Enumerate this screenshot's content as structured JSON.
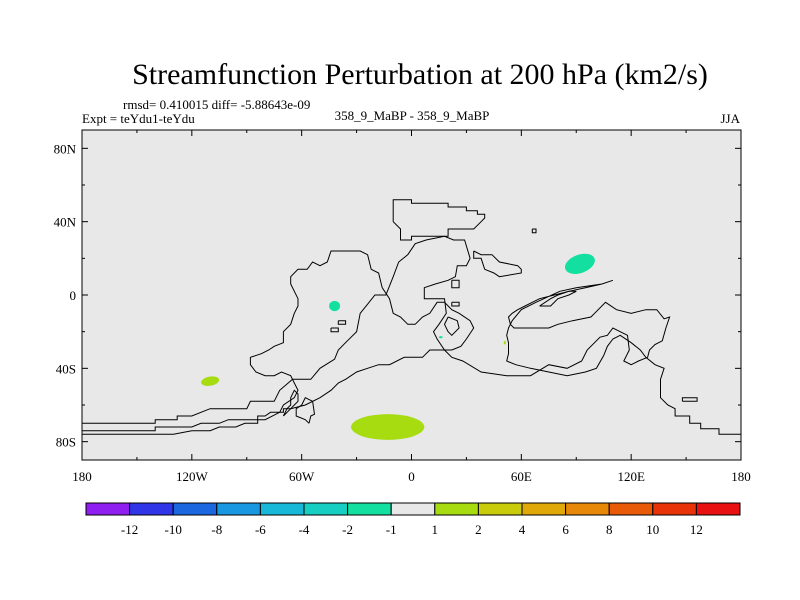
{
  "chart_data": {
    "type": "heatmap",
    "title": "Streamfunction Perturbation at 200 hPa (km2/s)",
    "stats_text": "rmsd= 0.410015 diff= -5.88643e-09",
    "experiment_text": "Expt = teYdu1-teYdu",
    "center_subtitle": "358_9_MaBP - 358_9_MaBP",
    "season": "JJA",
    "x_tick_labels": [
      "180",
      "120W",
      "60W",
      "0",
      "60E",
      "120E",
      "180"
    ],
    "x_tick_values": [
      -180,
      -120,
      -60,
      0,
      60,
      120,
      180
    ],
    "y_tick_labels": [
      "80N",
      "40N",
      "0",
      "40S",
      "80S"
    ],
    "y_tick_values": [
      80,
      40,
      0,
      -40,
      -80
    ],
    "xlim": [
      -180,
      180
    ],
    "ylim": [
      -90,
      90
    ],
    "colorbar_labels": [
      "-12",
      "-10",
      "-8",
      "-6",
      "-4",
      "-2",
      "-1",
      "1",
      "2",
      "4",
      "6",
      "8",
      "10",
      "12"
    ],
    "colorbar_colors": [
      "#8f1ff0",
      "#3135e8",
      "#1a67e0",
      "#1898e0",
      "#18b9d8",
      "#16cfc2",
      "#13e0a0",
      "#e8e8e8",
      "#a6dc10",
      "#c8cc0a",
      "#e0a808",
      "#e88808",
      "#e85a08",
      "#e83208",
      "#e81010"
    ],
    "anomalies": [
      {
        "lon": 92,
        "lat": 17,
        "value": -1.5,
        "rx": 8.5,
        "ry": 5,
        "rotation": -20
      },
      {
        "lon": -42,
        "lat": -6,
        "value": -1.5,
        "rx": 3,
        "ry": 2.8,
        "rotation": 0
      },
      {
        "lon": -110,
        "lat": -47,
        "value": 1.5,
        "rx": 5,
        "ry": 2.5,
        "rotation": -10
      },
      {
        "lon": -13,
        "lat": -72,
        "value": 1.5,
        "rx": 20,
        "ry": 7,
        "rotation": 0
      },
      {
        "lon": 16,
        "lat": -23,
        "value": -1.5,
        "rx": 1,
        "ry": 0.6,
        "rotation": 0
      },
      {
        "lon": 51,
        "lat": -26,
        "value": 1.5,
        "rx": 0.6,
        "ry": 1,
        "rotation": 0
      }
    ],
    "coastlines": [
      [
        [
          -180,
          -70
        ],
        [
          -140,
          -70
        ],
        [
          -140,
          -68
        ],
        [
          -128,
          -68
        ],
        [
          -128,
          -66
        ],
        [
          -120,
          -66
        ],
        [
          -110,
          -62
        ],
        [
          -90,
          -62
        ],
        [
          -88,
          -58
        ],
        [
          -75,
          -58
        ],
        [
          -72,
          -52
        ],
        [
          -65,
          -46
        ],
        [
          -55,
          -46
        ],
        [
          -50,
          -40
        ],
        [
          -42,
          -35
        ],
        [
          -40,
          -30
        ],
        [
          -35,
          -25
        ],
        [
          -30,
          -20
        ],
        [
          -28,
          -10
        ],
        [
          -24,
          -5
        ],
        [
          -20,
          0
        ],
        [
          -14,
          0
        ],
        [
          -10,
          10
        ],
        [
          -7,
          18
        ],
        [
          -2,
          22
        ],
        [
          2,
          28
        ],
        [
          8,
          30
        ],
        [
          18,
          32
        ],
        [
          23,
          30
        ],
        [
          29,
          30
        ],
        [
          32,
          20
        ],
        [
          30,
          16
        ],
        [
          25,
          16
        ],
        [
          24,
          10
        ],
        [
          20,
          8
        ],
        [
          13,
          6
        ],
        [
          7,
          4
        ],
        [
          7,
          -2
        ],
        [
          18,
          -2
        ],
        [
          19,
          -10
        ],
        [
          15,
          -16
        ],
        [
          12,
          -20
        ],
        [
          14,
          -24
        ],
        [
          18,
          -30
        ],
        [
          22,
          -34
        ],
        [
          28,
          -36
        ],
        [
          38,
          -42
        ],
        [
          52,
          -44
        ],
        [
          65,
          -44
        ],
        [
          75,
          -38
        ],
        [
          85,
          -40
        ],
        [
          93,
          -36
        ],
        [
          96,
          -30
        ],
        [
          103,
          -23
        ],
        [
          107,
          -22
        ],
        [
          110,
          -18
        ],
        [
          114,
          -20
        ],
        [
          118,
          -22
        ],
        [
          119,
          -30
        ],
        [
          116,
          -36
        ],
        [
          120,
          -38
        ],
        [
          124,
          -36
        ],
        [
          129,
          -34
        ],
        [
          130,
          -30
        ],
        [
          133,
          -27
        ],
        [
          137,
          -25
        ],
        [
          139,
          -18
        ],
        [
          141,
          -12
        ],
        [
          138,
          -13
        ],
        [
          134,
          -8
        ],
        [
          128,
          -8
        ],
        [
          120,
          -10
        ],
        [
          112,
          -8
        ],
        [
          106,
          -4
        ],
        [
          100,
          -10
        ],
        [
          98,
          -12
        ],
        [
          88,
          -14
        ],
        [
          80,
          -16
        ],
        [
          75,
          -18
        ],
        [
          65,
          -18
        ],
        [
          56,
          -18
        ],
        [
          54,
          -16
        ],
        [
          53,
          -12
        ],
        [
          55,
          -10
        ],
        [
          58,
          -8
        ],
        [
          62,
          -6
        ],
        [
          66,
          -4
        ],
        [
          70,
          -2
        ],
        [
          78,
          0
        ],
        [
          86,
          2
        ],
        [
          95,
          4
        ],
        [
          104,
          6
        ],
        [
          110,
          8
        ],
        [
          104,
          6
        ],
        [
          90,
          4
        ],
        [
          81,
          2
        ],
        [
          68,
          -4
        ],
        [
          60,
          -8
        ],
        [
          55,
          -14
        ],
        [
          53,
          -18
        ],
        [
          52,
          -22
        ],
        [
          53,
          -26
        ],
        [
          53,
          -32
        ],
        [
          52,
          -36
        ],
        [
          57,
          -38
        ],
        [
          65,
          -40
        ],
        [
          75,
          -42
        ],
        [
          85,
          -44
        ],
        [
          95,
          -42
        ],
        [
          101,
          -40
        ],
        [
          105,
          -33
        ],
        [
          107,
          -28
        ],
        [
          110,
          -24
        ],
        [
          114,
          -22
        ],
        [
          120,
          -26
        ],
        [
          125,
          -30
        ],
        [
          128,
          -34
        ],
        [
          133,
          -38
        ],
        [
          138,
          -40
        ],
        [
          136,
          -46
        ],
        [
          136,
          -56
        ],
        [
          140,
          -60
        ],
        [
          144,
          -62
        ],
        [
          144,
          -66
        ],
        [
          152,
          -66
        ],
        [
          152,
          -70
        ],
        [
          158,
          -70
        ],
        [
          158,
          -73
        ],
        [
          168,
          -73
        ],
        [
          168,
          -76
        ],
        [
          180,
          -76
        ]
      ],
      [
        [
          -180,
          -74
        ],
        [
          -140,
          -74
        ],
        [
          -140,
          -72
        ],
        [
          -120,
          -72
        ],
        [
          -115,
          -70
        ],
        [
          -105,
          -70
        ],
        [
          -100,
          -68
        ],
        [
          -80,
          -68
        ],
        [
          -72,
          -64
        ],
        [
          -70,
          -60
        ],
        [
          -64,
          -56
        ],
        [
          -62,
          -52
        ],
        [
          -64,
          -48
        ],
        [
          -66,
          -44
        ],
        [
          -71,
          -42
        ],
        [
          -75,
          -44
        ],
        [
          -80,
          -44
        ],
        [
          -85,
          -42
        ],
        [
          -88,
          -38
        ],
        [
          -88,
          -34
        ],
        [
          -82,
          -32
        ],
        [
          -78,
          -30
        ],
        [
          -75,
          -28
        ],
        [
          -70,
          -26
        ],
        [
          -70,
          -20
        ],
        [
          -66,
          -16
        ],
        [
          -64,
          -10
        ],
        [
          -62,
          -6
        ],
        [
          -62,
          -2
        ],
        [
          -66,
          6
        ],
        [
          -66,
          10
        ],
        [
          -62,
          14
        ],
        [
          -57,
          14
        ],
        [
          -54,
          18
        ],
        [
          -50,
          16
        ],
        [
          -46,
          18
        ],
        [
          -44,
          24
        ],
        [
          -28,
          24
        ],
        [
          -24,
          22
        ],
        [
          -22,
          14
        ],
        [
          -18,
          12
        ],
        [
          -16,
          4
        ],
        [
          -12,
          -2
        ],
        [
          -10,
          -10
        ],
        [
          -6,
          -12
        ],
        [
          -2,
          -16
        ],
        [
          2,
          -16
        ],
        [
          6,
          -12
        ],
        [
          10,
          -10
        ],
        [
          14,
          -4
        ],
        [
          18,
          -4
        ],
        [
          22,
          -8
        ],
        [
          26,
          -10
        ],
        [
          32,
          -14
        ],
        [
          34,
          -18
        ],
        [
          30,
          -24
        ],
        [
          27,
          -28
        ],
        [
          22,
          -30
        ],
        [
          10,
          -30
        ],
        [
          6,
          -34
        ],
        [
          -4,
          -34
        ],
        [
          -12,
          -38
        ],
        [
          -18,
          -38
        ],
        [
          -24,
          -40
        ],
        [
          -30,
          -42
        ],
        [
          -36,
          -46
        ],
        [
          -40,
          -48
        ],
        [
          -44,
          -52
        ],
        [
          -50,
          -56
        ],
        [
          -58,
          -60
        ],
        [
          -66,
          -62
        ],
        [
          -70,
          -62
        ],
        [
          -70,
          -64
        ],
        [
          -77,
          -64
        ],
        [
          -80,
          -66
        ],
        [
          -84,
          -66
        ],
        [
          -84,
          -70
        ],
        [
          -91,
          -70
        ],
        [
          -96,
          -72
        ],
        [
          -105,
          -72
        ],
        [
          -110,
          -74
        ],
        [
          -120,
          -74
        ],
        [
          -130,
          -76
        ],
        [
          -140,
          -76
        ],
        [
          -160,
          -76
        ],
        [
          -180,
          -76
        ]
      ],
      [
        [
          -10,
          40
        ],
        [
          -10,
          52
        ],
        [
          0,
          52
        ],
        [
          0,
          50
        ],
        [
          20,
          50
        ],
        [
          20,
          48
        ],
        [
          30,
          48
        ],
        [
          30,
          46
        ],
        [
          36,
          46
        ],
        [
          36,
          44
        ],
        [
          40,
          44
        ],
        [
          40,
          42
        ],
        [
          38,
          40
        ],
        [
          34,
          36
        ],
        [
          20,
          36
        ],
        [
          20,
          32
        ],
        [
          8,
          32
        ],
        [
          0,
          32
        ],
        [
          0,
          30
        ],
        [
          -6,
          30
        ],
        [
          -6,
          36
        ],
        [
          -10,
          40
        ]
      ],
      [
        [
          34,
          24
        ],
        [
          34,
          20
        ],
        [
          38,
          20
        ],
        [
          40,
          14
        ],
        [
          45,
          12
        ],
        [
          48,
          10
        ],
        [
          60,
          12
        ],
        [
          60,
          14
        ],
        [
          58,
          16
        ],
        [
          48,
          18
        ],
        [
          44,
          22
        ],
        [
          38,
          22
        ],
        [
          34,
          24
        ]
      ],
      [
        [
          22,
          -4
        ],
        [
          22,
          -6
        ],
        [
          26,
          -6
        ],
        [
          26,
          -4
        ],
        [
          22,
          -4
        ]
      ],
      [
        [
          -40,
          -14
        ],
        [
          -36,
          -14
        ],
        [
          -36,
          -16
        ],
        [
          -40,
          -16
        ],
        [
          -40,
          -14
        ]
      ],
      [
        [
          -44,
          -18
        ],
        [
          -40,
          -18
        ],
        [
          -40,
          -20
        ],
        [
          -44,
          -20
        ],
        [
          -44,
          -18
        ]
      ],
      [
        [
          -56,
          -70
        ],
        [
          -55,
          -66
        ],
        [
          -53,
          -65
        ],
        [
          -54,
          -58
        ],
        [
          -58,
          -56
        ],
        [
          -60,
          -60
        ],
        [
          -63,
          -62
        ],
        [
          -63,
          -66
        ],
        [
          -58,
          -68
        ],
        [
          -56,
          -70
        ]
      ],
      [
        [
          -70,
          -66
        ],
        [
          -66,
          -62
        ],
        [
          -64,
          -60
        ],
        [
          -62,
          -58
        ],
        [
          -62,
          -54
        ],
        [
          -64,
          -52
        ],
        [
          -66,
          -56
        ],
        [
          -66,
          -60
        ],
        [
          -68,
          -62
        ],
        [
          -70,
          -66
        ]
      ],
      [
        [
          148,
          -58
        ],
        [
          148,
          -56
        ],
        [
          156,
          -56
        ],
        [
          156,
          -58
        ],
        [
          148,
          -58
        ]
      ],
      [
        [
          20,
          -12
        ],
        [
          25,
          -14
        ],
        [
          26,
          -18
        ],
        [
          22,
          -22
        ],
        [
          20,
          -20
        ],
        [
          18,
          -16
        ],
        [
          20,
          -12
        ]
      ],
      [
        [
          70,
          -6
        ],
        [
          76,
          -6
        ],
        [
          80,
          -2
        ],
        [
          86,
          0
        ],
        [
          90,
          2
        ],
        [
          86,
          2
        ],
        [
          80,
          0
        ],
        [
          76,
          -2
        ],
        [
          70,
          -6
        ]
      ],
      [
        [
          66,
          36
        ],
        [
          66,
          34
        ],
        [
          68,
          34
        ],
        [
          68,
          36
        ],
        [
          66,
          36
        ]
      ],
      [
        [
          22,
          8
        ],
        [
          22,
          4
        ],
        [
          26,
          4
        ],
        [
          26,
          8
        ],
        [
          22,
          8
        ]
      ]
    ]
  }
}
